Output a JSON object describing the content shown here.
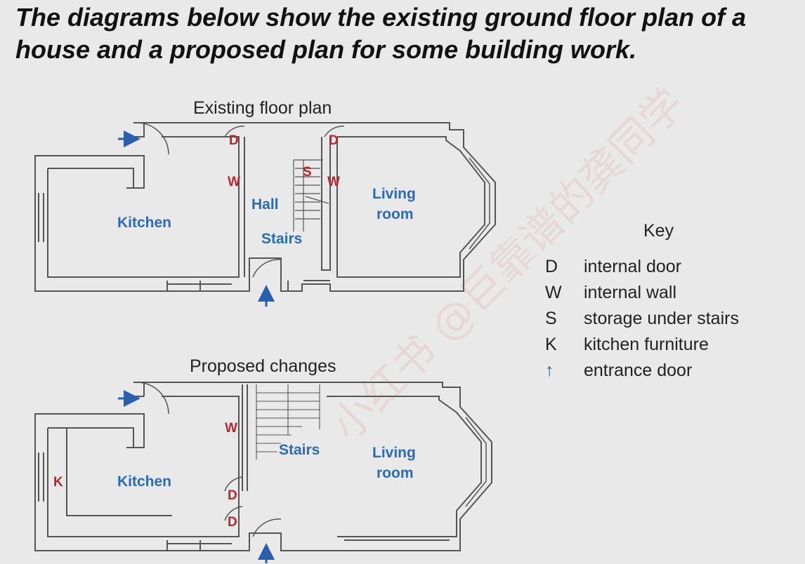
{
  "heading": "The diagrams below show the existing ground floor plan of a house and a proposed plan for some building work.",
  "existing": {
    "title": "Existing floor plan",
    "kitchen": "Kitchen",
    "hall": "Hall",
    "stairs": "Stairs",
    "living1": "Living",
    "living2": "room",
    "d": "D",
    "w": "W",
    "s": "S"
  },
  "proposed": {
    "title": "Proposed changes",
    "kitchen": "Kitchen",
    "stairs": "Stairs",
    "living1": "Living",
    "living2": "room",
    "d": "D",
    "w": "W",
    "k": "K"
  },
  "key": {
    "title": "Key",
    "items": [
      {
        "symbol": "D",
        "label": "internal door"
      },
      {
        "symbol": "W",
        "label": "internal wall"
      },
      {
        "symbol": "S",
        "label": "storage under stairs"
      },
      {
        "symbol": "K",
        "label": "kitchen furniture"
      },
      {
        "symbol": "↑",
        "label": "entrance door"
      }
    ]
  },
  "colors": {
    "room_label": "#2a6bb8",
    "marker": "#b8262b",
    "wall": "#555555",
    "arrow": "#2a5fb0"
  },
  "watermark": "小红书 @巨靠谱的龚同学"
}
